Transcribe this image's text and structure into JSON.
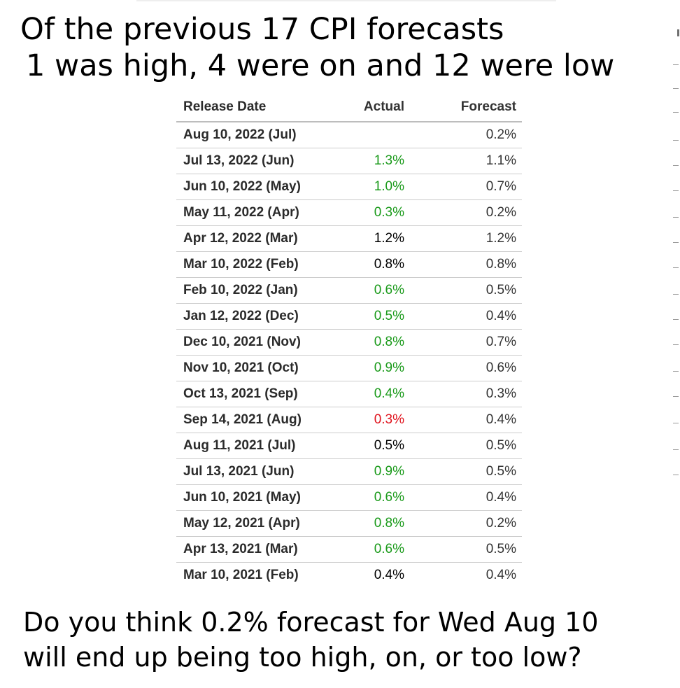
{
  "headline": {
    "line1": "Of the previous 17 CPI forecasts",
    "line2": "1 was high, 4 were on and 12 were low"
  },
  "question": {
    "line1": "Do you think 0.2% forecast for Wed Aug 10",
    "line2": "will end up being too high, on, or too low?"
  },
  "table": {
    "headers": {
      "release_date": "Release Date",
      "actual": "Actual",
      "forecast": "Forecast"
    },
    "colors": {
      "above": "#1a9a1a",
      "below": "#e0141e",
      "equal": "#000000"
    },
    "rows": [
      {
        "date": "Aug 10, 2022 (Jul)",
        "actual": "",
        "forecast": "0.2%",
        "status": "equal"
      },
      {
        "date": "Jul 13, 2022 (Jun)",
        "actual": "1.3%",
        "forecast": "1.1%",
        "status": "above"
      },
      {
        "date": "Jun 10, 2022 (May)",
        "actual": "1.0%",
        "forecast": "0.7%",
        "status": "above"
      },
      {
        "date": "May 11, 2022 (Apr)",
        "actual": "0.3%",
        "forecast": "0.2%",
        "status": "above"
      },
      {
        "date": "Apr 12, 2022 (Mar)",
        "actual": "1.2%",
        "forecast": "1.2%",
        "status": "equal"
      },
      {
        "date": "Mar 10, 2022 (Feb)",
        "actual": "0.8%",
        "forecast": "0.8%",
        "status": "equal"
      },
      {
        "date": "Feb 10, 2022 (Jan)",
        "actual": "0.6%",
        "forecast": "0.5%",
        "status": "above"
      },
      {
        "date": "Jan 12, 2022 (Dec)",
        "actual": "0.5%",
        "forecast": "0.4%",
        "status": "above"
      },
      {
        "date": "Dec 10, 2021 (Nov)",
        "actual": "0.8%",
        "forecast": "0.7%",
        "status": "above"
      },
      {
        "date": "Nov 10, 2021 (Oct)",
        "actual": "0.9%",
        "forecast": "0.6%",
        "status": "above"
      },
      {
        "date": "Oct 13, 2021 (Sep)",
        "actual": "0.4%",
        "forecast": "0.3%",
        "status": "above"
      },
      {
        "date": "Sep 14, 2021 (Aug)",
        "actual": "0.3%",
        "forecast": "0.4%",
        "status": "below"
      },
      {
        "date": "Aug 11, 2021 (Jul)",
        "actual": "0.5%",
        "forecast": "0.5%",
        "status": "equal"
      },
      {
        "date": "Jul 13, 2021 (Jun)",
        "actual": "0.9%",
        "forecast": "0.5%",
        "status": "above"
      },
      {
        "date": "Jun 10, 2021 (May)",
        "actual": "0.6%",
        "forecast": "0.4%",
        "status": "above"
      },
      {
        "date": "May 12, 2021 (Apr)",
        "actual": "0.8%",
        "forecast": "0.2%",
        "status": "above"
      },
      {
        "date": "Apr 13, 2021 (Mar)",
        "actual": "0.6%",
        "forecast": "0.5%",
        "status": "above"
      },
      {
        "date": "Mar 10, 2021 (Feb)",
        "actual": "0.4%",
        "forecast": "0.4%",
        "status": "equal"
      }
    ]
  }
}
